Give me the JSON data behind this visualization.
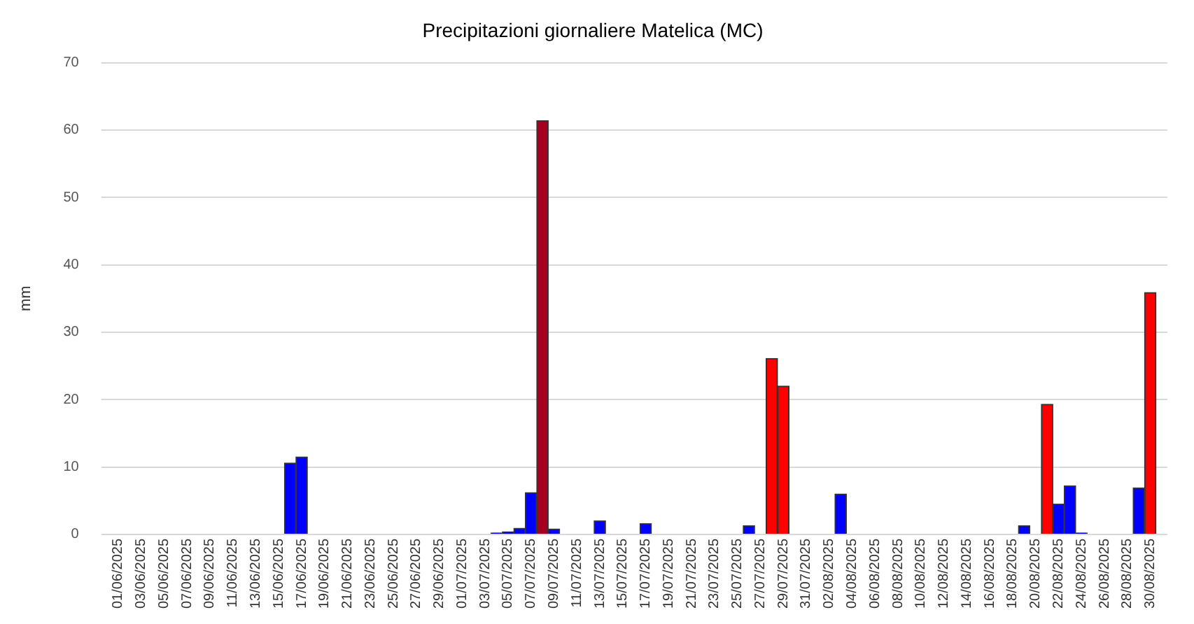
{
  "chart_data": {
    "type": "bar",
    "title": "Precipitazioni giornaliere Matelica (MC)",
    "ylabel": "mm",
    "categories": [
      "01/06/2025",
      null,
      "03/06/2025",
      null,
      "05/06/2025",
      null,
      "07/06/2025",
      null,
      "09/06/2025",
      null,
      "11/06/2025",
      null,
      "13/06/2025",
      null,
      "15/06/2025",
      null,
      "17/06/2025",
      null,
      "19/06/2025",
      null,
      "21/06/2025",
      null,
      "23/06/2025",
      null,
      "25/06/2025",
      null,
      "27/06/2025",
      null,
      "29/06/2025",
      null,
      "01/07/2025",
      null,
      "03/07/2025",
      null,
      "05/07/2025",
      null,
      "07/07/2025",
      null,
      "09/07/2025",
      null,
      "11/07/2025",
      null,
      "13/07/2025",
      null,
      "15/07/2025",
      null,
      "17/07/2025",
      null,
      "19/07/2025",
      null,
      "21/07/2025",
      null,
      "23/07/2025",
      null,
      "25/07/2025",
      null,
      "27/07/2025",
      null,
      "29/07/2025",
      null,
      "31/07/2025",
      null,
      "02/08/2025",
      null,
      "04/08/2025",
      null,
      "06/08/2025",
      null,
      "08/08/2025",
      null,
      "10/08/2025",
      null,
      "12/08/2025",
      null,
      "14/08/2025",
      null,
      "16/08/2025",
      null,
      "18/08/2025",
      null,
      "20/08/2025",
      null,
      "22/08/2025",
      null,
      "24/08/2025",
      null,
      "26/08/2025",
      null,
      "28/08/2025",
      null,
      "30/08/2025",
      null
    ],
    "values": [
      0,
      0,
      0,
      0,
      0,
      0,
      0,
      0,
      0,
      0,
      0,
      0,
      0,
      0,
      0,
      10.6,
      11.5,
      0,
      0,
      0,
      0,
      0,
      0,
      0,
      0,
      0,
      0,
      0,
      0,
      0,
      0,
      0,
      0,
      0.2,
      0.4,
      0.9,
      6.2,
      61.4,
      0.8,
      0,
      0,
      0,
      2.0,
      0,
      0,
      0,
      1.6,
      0,
      0,
      0,
      0,
      0,
      0,
      0,
      0,
      1.3,
      0,
      26.1,
      22.0,
      0,
      0,
      0,
      0,
      6.0,
      0,
      0,
      0,
      0,
      0,
      0,
      0,
      0,
      0,
      0,
      0,
      0,
      0,
      0,
      0,
      1.3,
      null,
      19.3,
      4.5,
      7.2,
      0.2,
      0,
      0,
      0,
      0,
      6.9,
      35.9,
      null
    ],
    "colors": [
      "#0000ff",
      "#0000ff",
      "#0000ff",
      "#0000ff",
      "#0000ff",
      "#0000ff",
      "#0000ff",
      "#0000ff",
      "#0000ff",
      "#0000ff",
      "#0000ff",
      "#0000ff",
      "#0000ff",
      "#0000ff",
      "#0000ff",
      "#0000ff",
      "#0000ff",
      "#0000ff",
      "#0000ff",
      "#0000ff",
      "#0000ff",
      "#0000ff",
      "#0000ff",
      "#0000ff",
      "#0000ff",
      "#0000ff",
      "#0000ff",
      "#0000ff",
      "#0000ff",
      "#0000ff",
      "#0000ff",
      "#0000ff",
      "#0000ff",
      "#0000ff",
      "#0000ff",
      "#0000ff",
      "#0000ff",
      "#a50021",
      "#0000ff",
      "#0000ff",
      "#0000ff",
      "#0000ff",
      "#0000ff",
      "#0000ff",
      "#0000ff",
      "#0000ff",
      "#0000ff",
      "#0000ff",
      "#0000ff",
      "#0000ff",
      "#0000ff",
      "#0000ff",
      "#0000ff",
      "#0000ff",
      "#0000ff",
      "#0000ff",
      "#0000ff",
      "#ff0000",
      "#ff0000",
      "#0000ff",
      "#0000ff",
      "#0000ff",
      "#0000ff",
      "#0000ff",
      "#0000ff",
      "#0000ff",
      "#0000ff",
      "#0000ff",
      "#0000ff",
      "#0000ff",
      "#0000ff",
      "#0000ff",
      "#0000ff",
      "#0000ff",
      "#0000ff",
      "#0000ff",
      "#0000ff",
      "#0000ff",
      "#0000ff",
      "#0000ff",
      "#0000ff",
      "#ff0000",
      "#0000ff",
      "#0000ff",
      "#0000ff",
      "#0000ff",
      "#0000ff",
      "#0000ff",
      "#0000ff",
      "#0000ff",
      "#ff0000",
      "#0000ff"
    ],
    "ylim": [
      0,
      70
    ],
    "yticks": [
      0,
      10,
      20,
      30,
      40,
      50,
      60,
      70
    ],
    "grid": "y",
    "legend": false
  }
}
